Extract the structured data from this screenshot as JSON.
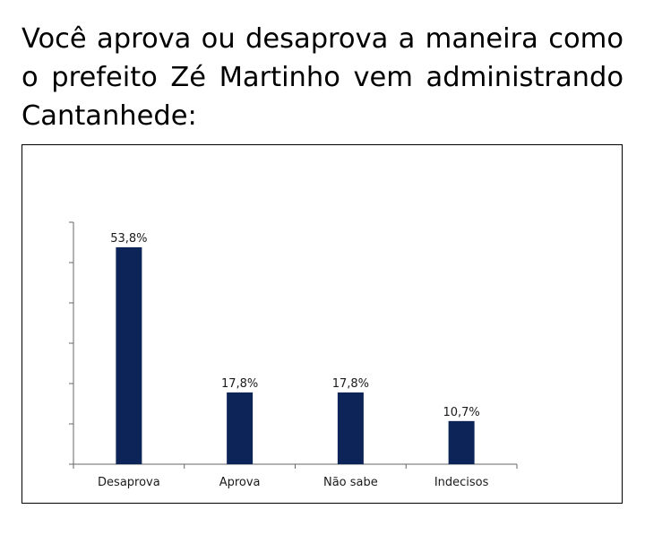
{
  "question": "Você aprova ou desaprova a maneira como o prefeito Zé Martinho vem administrando Cantanhede:",
  "colors": {
    "bar": "#0d2459",
    "axis": "#666666"
  },
  "chart_data": {
    "type": "bar",
    "categories": [
      "Desaprova",
      "Aprova",
      "Não sabe",
      "Indecisos"
    ],
    "values": [
      53.8,
      17.8,
      17.8,
      10.7
    ],
    "value_labels": [
      "53,8%",
      "17,8%",
      "17,8%",
      "10,7%"
    ],
    "title": "",
    "xlabel": "",
    "ylabel": "",
    "ylim": [
      0,
      60
    ],
    "y_ticks": [
      0,
      10,
      20,
      30,
      40,
      50,
      60
    ],
    "y_tick_labels_shown": false,
    "grid": false,
    "legend": "none"
  }
}
